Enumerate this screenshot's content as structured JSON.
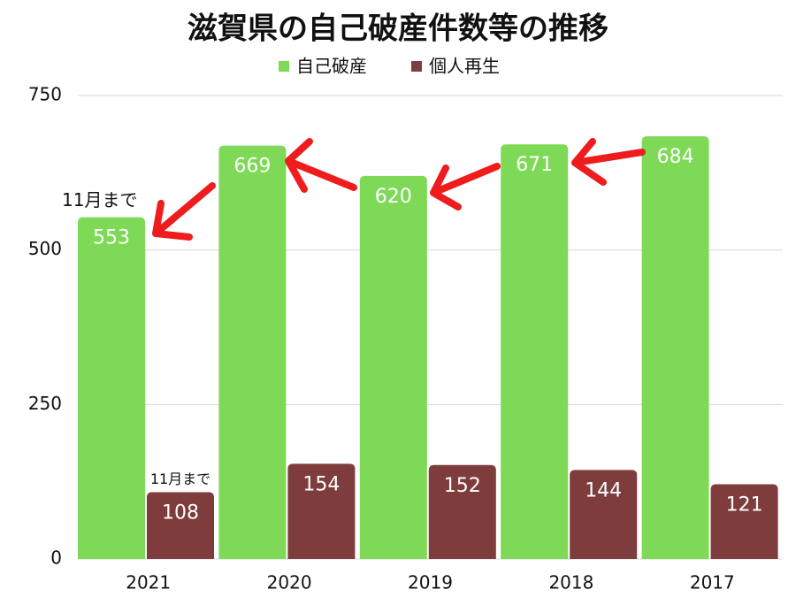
{
  "chart_data": {
    "type": "bar",
    "title": "滋賀県の自己破産件数等の推移",
    "categories": [
      "2021",
      "2020",
      "2019",
      "2018",
      "2017"
    ],
    "series": [
      {
        "name": "自己破産",
        "color": "#7ed957",
        "values": [
          553,
          669,
          620,
          671,
          684
        ]
      },
      {
        "name": "個人再生",
        "color": "#7e3c3c",
        "values": [
          108,
          154,
          152,
          144,
          121
        ]
      }
    ],
    "ylim": [
      0,
      750
    ],
    "yticks": [
      0,
      250,
      500,
      750
    ],
    "grid": true,
    "legend": "top",
    "annotations": [
      "11月まで",
      "11月まで"
    ]
  }
}
